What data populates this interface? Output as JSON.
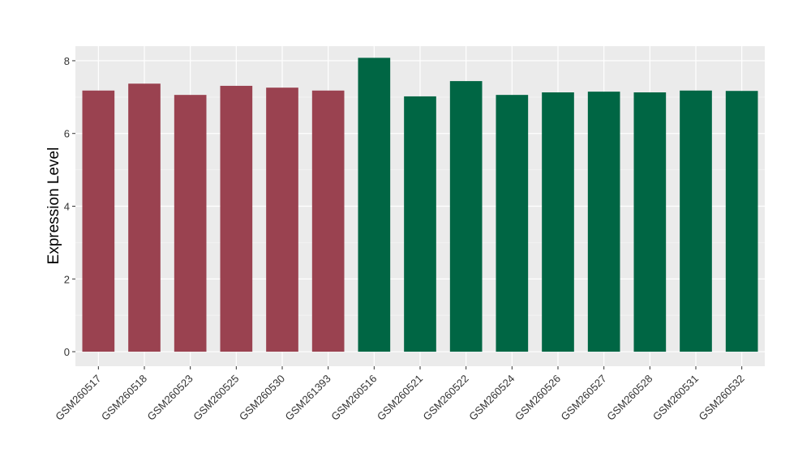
{
  "chart_data": {
    "type": "bar",
    "title": "",
    "xlabel": "",
    "ylabel": "Expression Level",
    "ylim": [
      -0.4,
      8.4
    ],
    "yticks": [
      0,
      2,
      4,
      6,
      8
    ],
    "grid": true,
    "categories": [
      "GSM260517",
      "GSM260518",
      "GSM260523",
      "GSM260525",
      "GSM260530",
      "GSM261393",
      "GSM260516",
      "GSM260521",
      "GSM260522",
      "GSM260524",
      "GSM260526",
      "GSM260527",
      "GSM260528",
      "GSM260531",
      "GSM260532"
    ],
    "values": [
      7.18,
      7.37,
      7.06,
      7.31,
      7.26,
      7.18,
      8.08,
      7.02,
      7.44,
      7.06,
      7.13,
      7.15,
      7.13,
      7.18,
      7.17
    ],
    "bar_colors": [
      "#9a4250",
      "#9a4250",
      "#9a4250",
      "#9a4250",
      "#9a4250",
      "#9a4250",
      "#006644",
      "#006644",
      "#006644",
      "#006644",
      "#006644",
      "#006644",
      "#006644",
      "#006644",
      "#006644"
    ]
  }
}
